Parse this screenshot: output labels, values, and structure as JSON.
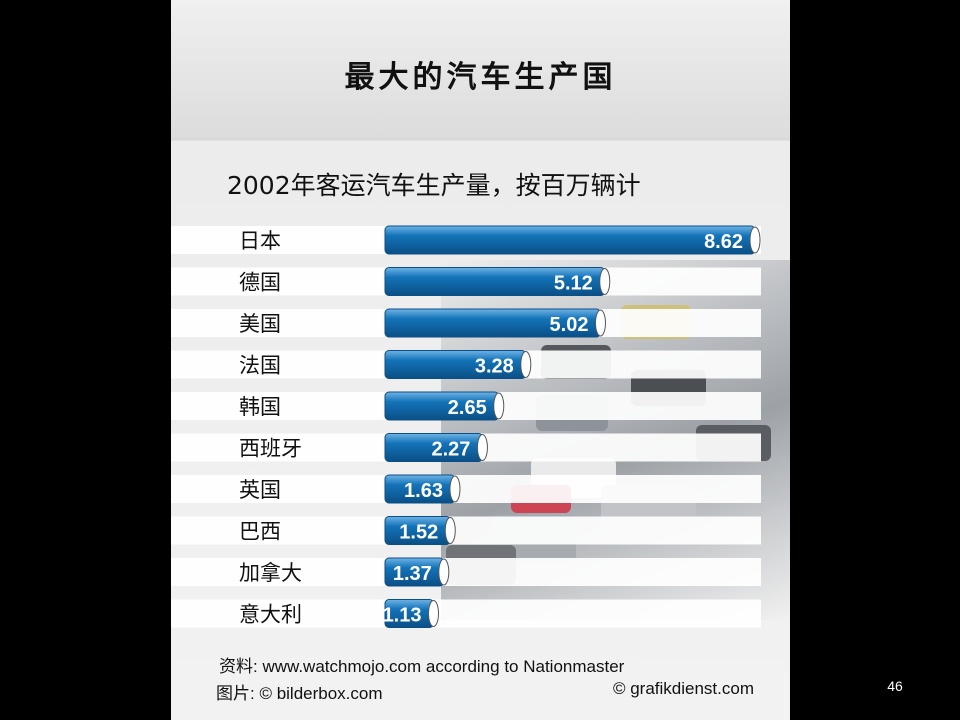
{
  "title": "最大的汽车生产国",
  "footer": {
    "source": "资料: www.watchmojo.com according to Nationmaster",
    "photo_credit": "图片: © bilderbox.com",
    "copyright": "© grafikdienst.com"
  },
  "page_number": "46",
  "colors": {
    "bar": "#1373b8",
    "bar_dark": "#0b4f86",
    "track": "#ffffff",
    "background": "#000000"
  },
  "chart_data": {
    "type": "bar",
    "orientation": "horizontal",
    "title": "2002年客运汽车生产量，按百万辆计",
    "categories": [
      "日本",
      "德国",
      "美国",
      "法国",
      "韩国",
      "西班牙",
      "英国",
      "巴西",
      "加拿大",
      "意大利"
    ],
    "values": [
      8.62,
      5.12,
      5.02,
      3.28,
      2.65,
      2.27,
      1.63,
      1.52,
      1.37,
      1.13
    ],
    "value_labels": [
      "8.62",
      "5.12",
      "5.02",
      "3.28",
      "2.65",
      "2.27",
      "1.63",
      "1.52",
      "1.37",
      "1.13"
    ],
    "xlim": [
      0,
      8.62
    ],
    "grid": false,
    "legend": "none"
  }
}
